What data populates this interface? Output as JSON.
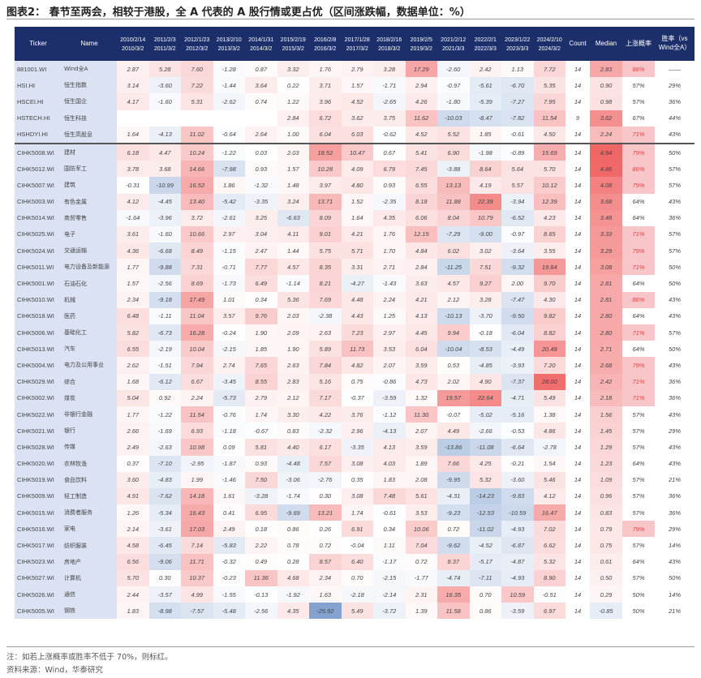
{
  "title": "图表2：  春节至两会，相较于港股，全 A 代表的 A 股行情或更占优（区间涨跌幅，数据单位：%）",
  "headers": {
    "ticker": "Ticker",
    "name": "Name",
    "count": "Count",
    "median": "Median",
    "up_prob": "上涨概率",
    "win_rate": "胜率（vs Wind全A）",
    "periods": [
      [
        "2010/2/14",
        "2010/3/2"
      ],
      [
        "2011/2/3",
        "2011/3/2"
      ],
      [
        "2012/1/23",
        "2012/3/2"
      ],
      [
        "2013/2/10",
        "2013/3/2"
      ],
      [
        "2014/1/31",
        "2014/3/2"
      ],
      [
        "2015/2/19",
        "2015/3/2"
      ],
      [
        "2016/2/8",
        "2016/3/2"
      ],
      [
        "2017/1/28",
        "2017/3/2"
      ],
      [
        "2018/2/16",
        "2018/3/2"
      ],
      [
        "2019/2/5",
        "2019/3/2"
      ],
      [
        "2021/2/12",
        "2021/3/3"
      ],
      [
        "2022/2/1",
        "2022/3/3"
      ],
      [
        "2023/1/22",
        "2023/3/3"
      ],
      [
        "2024/2/10",
        "2024/3/2"
      ]
    ]
  },
  "colors": {
    "header": "#1c2f6b",
    "positive": "#f06464",
    "negative": "#6f93c8",
    "highlight_text": "#e04040",
    "highlight_bg": "#f8c6c8"
  },
  "rows": [
    {
      "ticker": "881001.WI",
      "name": "Wind全A",
      "v": [
        2.87,
        5.28,
        7.6,
        -1.28,
        0.87,
        3.32,
        1.76,
        2.79,
        3.28,
        17.29,
        -2.6,
        2.42,
        1.13,
        7.72
      ],
      "count": "14",
      "median": "2.83",
      "prob": "86%",
      "win": "——"
    },
    {
      "ticker": "HSI.HI",
      "name": "恒生指数",
      "v": [
        3.14,
        -3.6,
        7.22,
        -1.44,
        3.64,
        0.22,
        3.71,
        1.57,
        -1.71,
        2.94,
        -0.97,
        -5.61,
        -6.7,
        5.35
      ],
      "count": "14",
      "median": "0.90",
      "prob": "57%",
      "win": "29%"
    },
    {
      "ticker": "HSCEI.HI",
      "name": "恒生国企",
      "v": [
        4.17,
        -1.6,
        5.31,
        -2.62,
        0.74,
        1.22,
        3.96,
        4.52,
        -2.65,
        4.26,
        -1.8,
        -5.39,
        -7.27,
        7.95
      ],
      "count": "14",
      "median": "0.98",
      "prob": "57%",
      "win": "36%"
    },
    {
      "ticker": "HSTECH.HI",
      "name": "恒生科技",
      "v": [
        null,
        null,
        null,
        null,
        null,
        2.84,
        6.72,
        3.62,
        3.75,
        11.62,
        -10.03,
        -8.47,
        -7.82,
        11.54
      ],
      "count": "9",
      "median": "3.62",
      "prob": "67%",
      "win": "44%"
    },
    {
      "ticker": "HSHDYI.HI",
      "name": "恒生高股息",
      "v": [
        1.64,
        -4.13,
        11.02,
        -0.64,
        2.64,
        1.0,
        6.04,
        6.03,
        -0.62,
        4.52,
        5.52,
        1.85,
        -0.61,
        4.5
      ],
      "count": "14",
      "median": "2.24",
      "prob": "71%",
      "win": "43%"
    },
    {
      "ticker": "CIHK5008.WI",
      "name": "建材",
      "v": [
        6.18,
        4.47,
        10.24,
        -1.22,
        0.03,
        2.03,
        18.52,
        10.47,
        0.67,
        5.41,
        6.9,
        -1.98,
        -0.89,
        15.69
      ],
      "count": "14",
      "median": "4.94",
      "prob": "79%",
      "win": "50%"
    },
    {
      "ticker": "CIHK5012.WI",
      "name": "国防军工",
      "v": [
        3.78,
        3.68,
        14.66,
        -7.98,
        0.93,
        1.57,
        10.28,
        4.09,
        6.79,
        7.45,
        -3.88,
        8.64,
        5.64,
        5.7
      ],
      "count": "14",
      "median": "4.86",
      "prob": "86%",
      "win": "57%"
    },
    {
      "ticker": "CIHK5007.WI",
      "name": "建筑",
      "v": [
        -0.31,
        -10.99,
        16.52,
        1.86,
        -1.32,
        1.48,
        3.97,
        4.8,
        0.93,
        6.55,
        13.13,
        4.19,
        5.57,
        10.12
      ],
      "count": "14",
      "median": "4.08",
      "prob": "79%",
      "win": "57%"
    },
    {
      "ticker": "CIHK5003.WI",
      "name": "有色金属",
      "v": [
        4.12,
        -4.45,
        13.4,
        -5.42,
        -3.35,
        3.24,
        13.71,
        1.52,
        -2.35,
        8.18,
        11.88,
        22.39,
        -3.94,
        12.39
      ],
      "count": "14",
      "median": "3.68",
      "prob": "64%",
      "win": "43%"
    },
    {
      "ticker": "CIHK5014.WI",
      "name": "商贸零售",
      "v": [
        -1.64,
        -3.96,
        3.72,
        -2.61,
        3.25,
        -6.63,
        8.09,
        1.64,
        4.35,
        6.06,
        8.04,
        10.79,
        -6.52,
        4.23
      ],
      "count": "14",
      "median": "3.48",
      "prob": "64%",
      "win": "36%"
    },
    {
      "ticker": "CIHK5025.WI",
      "name": "电子",
      "v": [
        3.61,
        -1.6,
        10.66,
        2.97,
        3.04,
        4.11,
        9.01,
        4.21,
        1.76,
        12.15,
        -7.29,
        -9.0,
        -0.97,
        8.65
      ],
      "count": "14",
      "median": "3.33",
      "prob": "71%",
      "win": "57%"
    },
    {
      "ticker": "CIHK5024.WI",
      "name": "交通运输",
      "v": [
        4.36,
        -6.68,
        8.49,
        -1.15,
        2.47,
        1.44,
        5.75,
        5.71,
        1.7,
        4.84,
        6.02,
        3.02,
        -3.64,
        3.55
      ],
      "count": "14",
      "median": "3.29",
      "prob": "79%",
      "win": "57%"
    },
    {
      "ticker": "CIHK5011.WI",
      "name": "电力设备及新能源",
      "v": [
        1.77,
        -9.88,
        7.31,
        -0.71,
        7.77,
        4.57,
        8.35,
        3.31,
        2.71,
        2.84,
        -11.25,
        7.51,
        -9.32,
        19.84
      ],
      "count": "14",
      "median": "3.08",
      "prob": "71%",
      "win": "50%"
    },
    {
      "ticker": "CIHK5001.WI",
      "name": "石油石化",
      "v": [
        1.57,
        -2.56,
        8.69,
        -1.73,
        6.49,
        -1.14,
        8.21,
        -4.27,
        -1.43,
        3.63,
        4.57,
        9.27,
        2.0,
        9.7
      ],
      "count": "14",
      "median": "2.81",
      "prob": "64%",
      "win": "50%"
    },
    {
      "ticker": "CIHK5010.WI",
      "name": "机械",
      "v": [
        2.34,
        -9.18,
        17.49,
        1.01,
        0.34,
        5.36,
        7.69,
        4.48,
        2.24,
        4.21,
        2.12,
        3.28,
        -7.47,
        4.3
      ],
      "count": "14",
      "median": "2.81",
      "prob": "86%",
      "win": "43%"
    },
    {
      "ticker": "CIHK5018.WI",
      "name": "医药",
      "v": [
        6.48,
        -1.11,
        11.04,
        3.57,
        9.76,
        2.03,
        -2.38,
        4.43,
        1.25,
        4.13,
        -10.13,
        -3.7,
        -9.5,
        9.82
      ],
      "count": "14",
      "median": "2.80",
      "prob": "64%",
      "win": "43%"
    },
    {
      "ticker": "CIHK5006.WI",
      "name": "基础化工",
      "v": [
        5.82,
        -6.73,
        16.28,
        -0.24,
        1.9,
        2.09,
        2.63,
        7.23,
        2.97,
        4.45,
        9.94,
        -0.18,
        -6.04,
        8.82
      ],
      "count": "14",
      "median": "2.80",
      "prob": "71%",
      "win": "57%"
    },
    {
      "ticker": "CIHK5013.WI",
      "name": "汽车",
      "v": [
        6.55,
        -2.19,
        10.04,
        -2.15,
        1.85,
        1.9,
        5.89,
        11.73,
        3.53,
        6.04,
        -10.04,
        -8.53,
        -4.49,
        20.48
      ],
      "count": "14",
      "median": "2.71",
      "prob": "64%",
      "win": "50%"
    },
    {
      "ticker": "CIHK5004.WI",
      "name": "电力及公用事业",
      "v": [
        2.62,
        -1.51,
        7.94,
        2.74,
        7.65,
        2.63,
        7.84,
        4.82,
        2.07,
        3.59,
        0.53,
        -4.85,
        -3.93,
        7.2
      ],
      "count": "14",
      "median": "2.68",
      "prob": "79%",
      "win": "43%"
    },
    {
      "ticker": "CIHK5029.WI",
      "name": "综合",
      "v": [
        1.68,
        -6.12,
        6.67,
        -3.45,
        8.55,
        2.83,
        5.16,
        0.75,
        -0.86,
        4.73,
        2.02,
        4.9,
        -7.37,
        28.0
      ],
      "count": "14",
      "median": "2.42",
      "prob": "71%",
      "win": "36%"
    },
    {
      "ticker": "CIHK5002.WI",
      "name": "煤炭",
      "v": [
        5.04,
        0.92,
        2.24,
        -5.73,
        2.79,
        2.12,
        7.17,
        -0.37,
        -3.59,
        1.32,
        19.57,
        22.64,
        -4.71,
        5.49
      ],
      "count": "14",
      "median": "2.18",
      "prob": "71%",
      "win": "36%"
    },
    {
      "ticker": "CIHK5022.WI",
      "name": "非银行金融",
      "v": [
        1.77,
        -1.22,
        11.54,
        -0.76,
        1.74,
        3.3,
        4.22,
        3.76,
        -1.12,
        11.3,
        -0.07,
        -5.02,
        -5.16,
        1.38
      ],
      "count": "14",
      "median": "1.56",
      "prob": "57%",
      "win": "43%"
    },
    {
      "ticker": "CIHK5021.WI",
      "name": "银行",
      "v": [
        2.66,
        -1.69,
        6.93,
        -1.18,
        -0.67,
        0.83,
        -2.32,
        2.96,
        -4.13,
        2.07,
        4.49,
        -2.66,
        -0.53,
        4.86
      ],
      "count": "14",
      "median": "1.45",
      "prob": "57%",
      "win": "29%"
    },
    {
      "ticker": "CIHK5028.WI",
      "name": "传媒",
      "v": [
        2.49,
        -2.63,
        10.98,
        0.09,
        5.81,
        4.4,
        6.17,
        -3.35,
        4.13,
        3.59,
        -13.86,
        -11.08,
        -6.64,
        -2.78
      ],
      "count": "14",
      "median": "1.29",
      "prob": "57%",
      "win": "43%"
    },
    {
      "ticker": "CIHK5020.WI",
      "name": "农林牧渔",
      "v": [
        0.37,
        -7.1,
        -2.95,
        -1.87,
        0.93,
        -4.48,
        7.57,
        3.08,
        4.03,
        1.89,
        7.66,
        4.25,
        -0.21,
        1.54
      ],
      "count": "14",
      "median": "1.23",
      "prob": "64%",
      "win": "43%"
    },
    {
      "ticker": "CIHK5019.WI",
      "name": "食品饮料",
      "v": [
        3.6,
        -4.83,
        1.99,
        -1.46,
        7.5,
        -3.06,
        -2.76,
        0.35,
        1.83,
        2.08,
        -9.95,
        5.32,
        -3.6,
        5.46
      ],
      "count": "14",
      "median": "1.09",
      "prob": "57%",
      "win": "21%"
    },
    {
      "ticker": "CIHK5009.WI",
      "name": "轻工制造",
      "v": [
        4.91,
        -7.62,
        14.18,
        1.61,
        -3.28,
        -1.74,
        0.3,
        3.08,
        7.48,
        5.61,
        -4.31,
        -14.23,
        -9.83,
        4.12
      ],
      "count": "14",
      "median": "0.96",
      "prob": "57%",
      "win": "36%"
    },
    {
      "ticker": "CIHK5015.WI",
      "name": "消费者服务",
      "v": [
        1.26,
        -5.34,
        16.43,
        0.41,
        6.95,
        -9.69,
        13.21,
        1.74,
        -0.61,
        3.53,
        -9.23,
        -12.53,
        -10.59,
        16.47
      ],
      "count": "14",
      "median": "0.83",
      "prob": "57%",
      "win": "36%"
    },
    {
      "ticker": "CIHK5016.WI",
      "name": "家电",
      "v": [
        2.14,
        -3.61,
        17.03,
        2.49,
        0.18,
        0.86,
        0.26,
        6.91,
        0.34,
        10.06,
        0.72,
        -11.02,
        -4.93,
        7.02
      ],
      "count": "14",
      "median": "0.79",
      "prob": "79%",
      "win": "29%"
    },
    {
      "ticker": "CIHK5017.WI",
      "name": "纺织服装",
      "v": [
        4.58,
        -6.45,
        7.14,
        -5.83,
        2.22,
        0.78,
        0.72,
        -0.04,
        1.11,
        7.04,
        -9.62,
        -4.52,
        -6.87,
        6.62
      ],
      "count": "14",
      "median": "0.75",
      "prob": "57%",
      "win": "14%"
    },
    {
      "ticker": "CIHK5023.WI",
      "name": "房地产",
      "v": [
        6.56,
        -9.06,
        11.71,
        -0.32,
        0.49,
        0.28,
        8.57,
        6.4,
        -1.17,
        0.72,
        8.37,
        -5.17,
        -4.87,
        5.32
      ],
      "count": "14",
      "median": "0.61",
      "prob": "64%",
      "win": "43%"
    },
    {
      "ticker": "CIHK5027.WI",
      "name": "计算机",
      "v": [
        5.7,
        0.3,
        10.37,
        -0.23,
        11.36,
        4.68,
        2.34,
        0.7,
        -2.15,
        -1.77,
        -4.74,
        -7.11,
        -4.93,
        8.9
      ],
      "count": "14",
      "median": "0.50",
      "prob": "57%",
      "win": "50%"
    },
    {
      "ticker": "CIHK5026.WI",
      "name": "通信",
      "v": [
        2.44,
        -3.57,
        4.99,
        -1.55,
        -0.13,
        -1.92,
        1.63,
        -2.18,
        -2.14,
        2.31,
        16.35,
        0.7,
        10.59,
        -0.51
      ],
      "count": "14",
      "median": "0.29",
      "prob": "50%",
      "win": "14%"
    },
    {
      "ticker": "CIHK5005.WI",
      "name": "钢铁",
      "v": [
        1.83,
        -8.98,
        -7.57,
        -5.48,
        -2.56,
        4.35,
        -25.92,
        5.49,
        -3.72,
        1.39,
        11.58,
        0.86,
        -3.59,
        6.97
      ],
      "count": "14",
      "median": "-0.85",
      "prob": "50%",
      "win": "21%"
    }
  ],
  "notes": {
    "note": "注：如若上涨概率或胜率不低于 70%，则标红。",
    "source": "资料来源：Wind，华泰研究"
  }
}
